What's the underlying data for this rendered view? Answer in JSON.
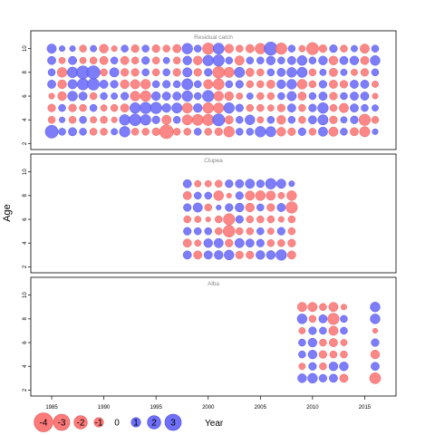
{
  "chart_data": {
    "type": "scatter",
    "description_style": "bubble residual plot, three stacked panels sharing x axis",
    "ylabel": "Age",
    "xlabel": "Year",
    "xlim": [
      1983,
      2018
    ],
    "x_ticks": [
      1985,
      1990,
      1995,
      2000,
      2005,
      2010,
      2015
    ],
    "ylim": [
      1.5,
      11.5
    ],
    "y_ticks": [
      2,
      4,
      6,
      8,
      10
    ],
    "grid": false,
    "colors": {
      "positive": "#6f6ff8",
      "negative": "#fc7a7a",
      "positive_edge": "#4a4ae0",
      "negative_edge": "#e05a5a",
      "title": "#888888"
    },
    "legend": {
      "placement": "bottom-left",
      "entries": [
        "-4",
        "-3",
        "-2",
        "-1",
        "0",
        "1",
        "2",
        "3"
      ]
    },
    "panels": [
      {
        "title": "Residual catch",
        "years": [
          1985,
          1986,
          1987,
          1988,
          1989,
          1990,
          1991,
          1992,
          1993,
          1994,
          1995,
          1996,
          1997,
          1998,
          1999,
          2000,
          2001,
          2002,
          2003,
          2004,
          2005,
          2006,
          2007,
          2008,
          2009,
          2010,
          2011,
          2012,
          2013,
          2014,
          2015,
          2016
        ],
        "ages": [
          3,
          4,
          5,
          6,
          7,
          8,
          9,
          10
        ],
        "residuals": [
          [
            1.9,
            -0.6,
            -0.7,
            -0.4,
            0.8,
            0.6,
            0.8,
            1.0
          ],
          [
            0.6,
            0.4,
            0.6,
            -0.9,
            -0.9,
            -1.1,
            -0.5,
            0.4
          ],
          [
            0.8,
            -0.6,
            -0.7,
            1.1,
            1.0,
            1.3,
            0.8,
            0.4
          ],
          [
            0.6,
            0.6,
            -0.6,
            0.8,
            1.5,
            1.9,
            -0.5,
            -0.6
          ],
          [
            -0.6,
            -0.5,
            0.6,
            -0.6,
            1.6,
            2.0,
            -0.6,
            0.5
          ],
          [
            -0.6,
            -0.6,
            -0.5,
            0.6,
            0.8,
            -0.6,
            -0.8,
            -0.9
          ],
          [
            0.5,
            -0.4,
            -0.6,
            0.5,
            0.7,
            1.0,
            0.6,
            -0.4
          ],
          [
            1.3,
            1.3,
            -0.8,
            0.7,
            -0.9,
            -0.7,
            -0.8,
            0.6
          ],
          [
            -0.6,
            1.6,
            1.3,
            -1.1,
            -1.0,
            -0.7,
            -0.6,
            -0.7
          ],
          [
            -0.6,
            1.3,
            1.5,
            -1.3,
            -1.1,
            0.6,
            0.7,
            0.6
          ],
          [
            -0.7,
            0.7,
            1.5,
            0.9,
            0.6,
            -0.6,
            -0.6,
            -0.7
          ],
          [
            -2.2,
            -1.0,
            0.9,
            0.8,
            0.7,
            0.6,
            0.5,
            -0.6
          ],
          [
            -0.6,
            0.6,
            1.2,
            0.8,
            0.6,
            -0.7,
            -0.6,
            -0.8
          ],
          [
            -0.6,
            -1.2,
            -1.2,
            1.3,
            1.4,
            1.0,
            0.9,
            1.3
          ],
          [
            0.6,
            -1.4,
            0.9,
            0.6,
            0.6,
            -0.7,
            -0.9,
            0.6
          ],
          [
            -0.6,
            -1.5,
            -1.3,
            1.5,
            -1.0,
            0.7,
            1.3,
            -1.5
          ],
          [
            -0.7,
            1.7,
            -1.2,
            -1.1,
            -1.4,
            -1.6,
            1.5,
            1.4
          ],
          [
            -1.3,
            -0.8,
            1.3,
            -0.9,
            0.6,
            -1.2,
            0.6,
            -0.9
          ],
          [
            0.6,
            0.6,
            0.7,
            -0.5,
            0.7,
            1.2,
            -1.0,
            -0.6
          ],
          [
            0.6,
            1.1,
            -0.6,
            0.5,
            -0.6,
            -0.8,
            0.6,
            -0.8
          ],
          [
            1.3,
            -0.5,
            -0.6,
            -0.6,
            -0.6,
            -0.6,
            0.6,
            -1.3
          ],
          [
            1.2,
            0.6,
            -0.5,
            -0.6,
            -0.8,
            0.6,
            0.9,
            2.0
          ],
          [
            -0.9,
            -0.9,
            -0.7,
            0.6,
            0.9,
            0.8,
            0.6,
            -1.5
          ],
          [
            -0.7,
            0.6,
            0.8,
            1.0,
            1.1,
            1.1,
            0.8,
            0.6
          ],
          [
            0.7,
            -0.6,
            -0.6,
            -0.8,
            -1.1,
            1.2,
            1.1,
            -0.5
          ],
          [
            -0.6,
            0.8,
            0.7,
            0.6,
            -0.6,
            -0.6,
            0.6,
            -1.7
          ],
          [
            1.0,
            1.2,
            1.3,
            0.8,
            0.7,
            0.5,
            0.9,
            -0.7
          ],
          [
            -1.0,
            -0.7,
            -0.6,
            -0.7,
            -0.8,
            -0.8,
            -0.9,
            0.7
          ],
          [
            0.6,
            0.5,
            -1.0,
            0.6,
            -0.7,
            0.5,
            0.8,
            -0.6
          ],
          [
            -0.8,
            0.7,
            0.8,
            0.8,
            0.8,
            -0.5,
            0.9,
            0.5
          ],
          [
            -1.2,
            -1.5,
            0.6,
            0.8,
            0.8,
            -0.7,
            -0.8,
            -1.0
          ],
          [
            0.4,
            -0.6,
            0.5,
            -0.4,
            -0.5,
            0.6,
            1.1,
            0.6
          ]
        ]
      },
      {
        "title": "Clupea",
        "years": [
          1998,
          1999,
          2000,
          2001,
          2002,
          2003,
          2004,
          2005,
          2006,
          2007,
          2008
        ],
        "ages": [
          3,
          4,
          5,
          6,
          7,
          8,
          9
        ],
        "residuals": [
          [
            0.8,
            -0.8,
            0.7,
            -0.6,
            0.7,
            -0.8,
            0.8
          ],
          [
            -0.8,
            -0.5,
            0.6,
            -0.5,
            1.0,
            0.6,
            -0.5
          ],
          [
            0.8,
            0.9,
            0.6,
            -0.3,
            -0.6,
            0.6,
            -0.5
          ],
          [
            0.9,
            1.0,
            -0.6,
            -0.6,
            0.3,
            -1.1,
            -0.6
          ],
          [
            1.1,
            -0.7,
            -1.6,
            -1.5,
            0.7,
            -0.3,
            0.7
          ],
          [
            -0.7,
            1.0,
            -0.6,
            0.7,
            0.9,
            0.7,
            0.8
          ],
          [
            -0.7,
            0.8,
            -0.6,
            -0.6,
            -0.9,
            -1.0,
            1.0
          ],
          [
            0.9,
            0.7,
            0.6,
            -0.6,
            0.6,
            -1.1,
            0.7
          ],
          [
            0.9,
            -0.6,
            -0.5,
            -0.6,
            -0.7,
            -1.0,
            1.3
          ],
          [
            1.3,
            -0.6,
            0.7,
            -0.4,
            0.8,
            -0.5,
            1.0
          ],
          [
            -0.8,
            -0.7,
            -0.6,
            -0.6,
            -1.5,
            -1.1,
            0.4
          ]
        ]
      },
      {
        "title": "Alba",
        "years": [
          2009,
          2010,
          2011,
          2012,
          2013,
          2016
        ],
        "ages": [
          3,
          4,
          5,
          6,
          7,
          8,
          9
        ],
        "residuals": [
          [
            0.9,
            -0.5,
            0.6,
            0.6,
            -0.5,
            1.1,
            -1.0
          ],
          [
            1.1,
            0.7,
            0.9,
            0.9,
            0.7,
            -0.6,
            -1.0
          ],
          [
            0.7,
            -0.6,
            -0.7,
            -0.6,
            0.6,
            0.8,
            -0.6
          ],
          [
            0.8,
            0.9,
            -0.6,
            -0.8,
            -1.0,
            -1.5,
            -1.0
          ],
          [
            -0.8,
            0.9,
            -0.6,
            -0.5,
            0.6,
            0.6,
            -0.4
          ],
          [
            -1.4,
            0.8,
            -0.9,
            0.7,
            -0.3,
            1.1,
            1.1
          ]
        ]
      }
    ]
  }
}
